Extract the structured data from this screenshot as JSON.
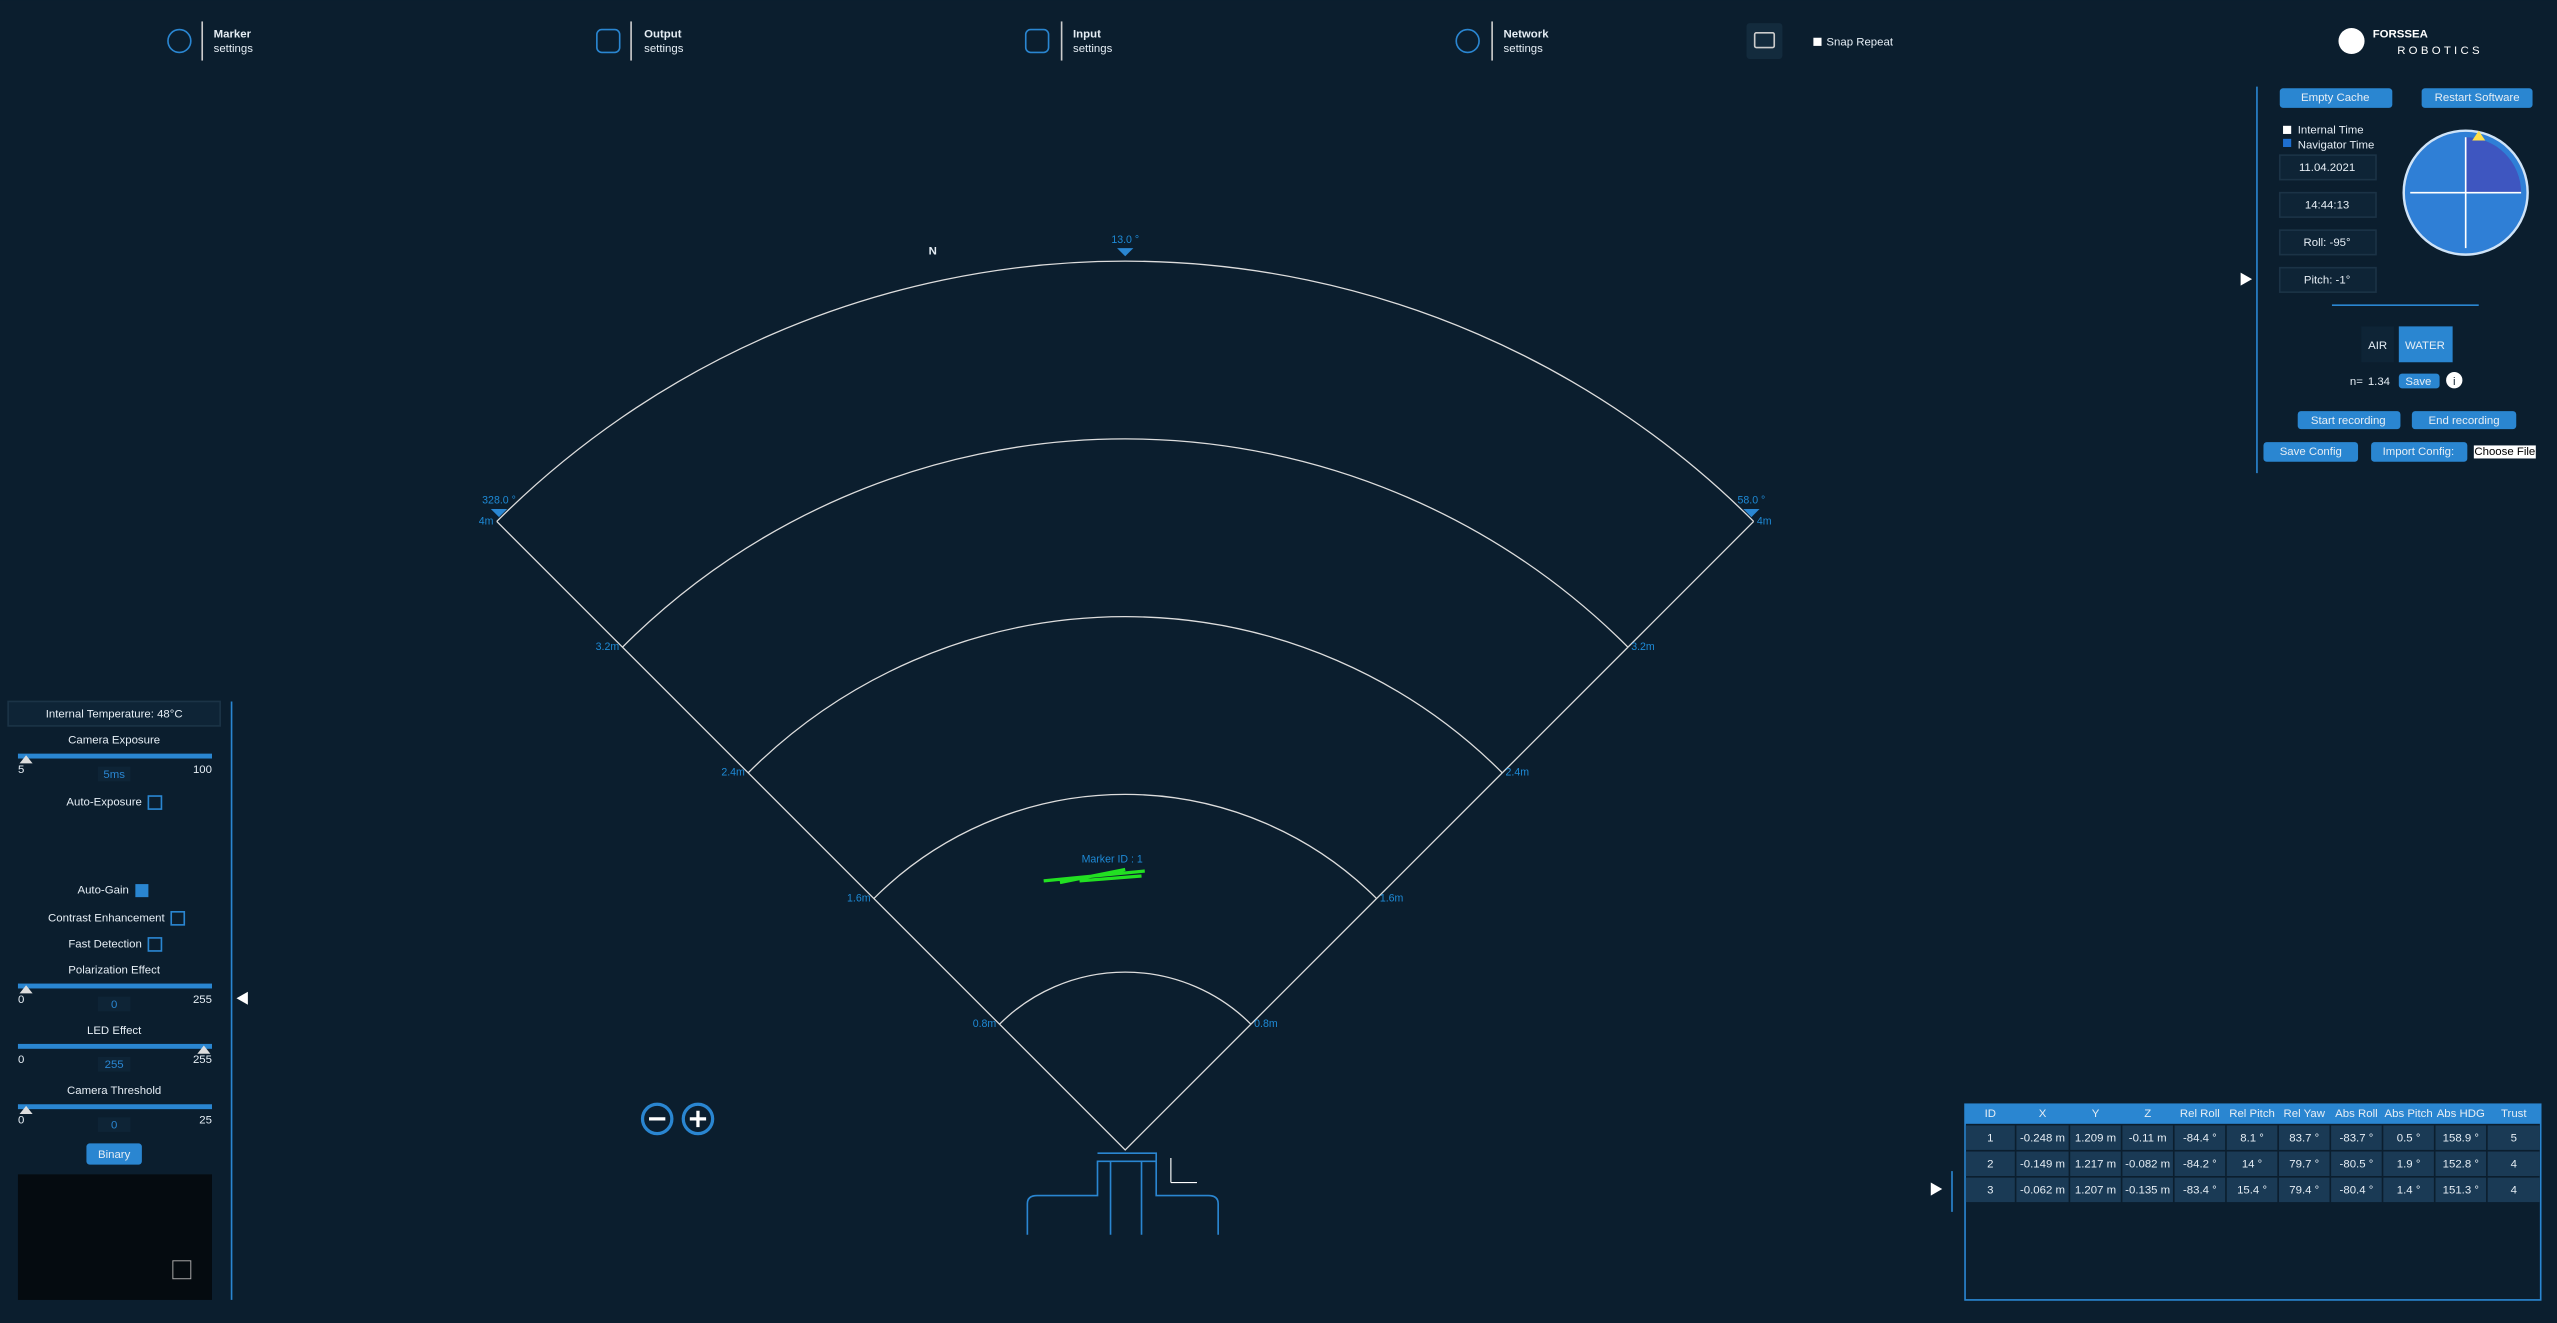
{
  "nav": [
    {
      "title": "Marker",
      "subtitle": "settings"
    },
    {
      "title": "Output",
      "subtitle": "settings"
    },
    {
      "title": "Input",
      "subtitle": "settings"
    },
    {
      "title": "Network",
      "subtitle": "settings"
    }
  ],
  "snap_repeat": "Snap Repeat",
  "logo": {
    "name": "FORSSEA",
    "tagline": "ROBOTICS"
  },
  "right_panel": {
    "buttons": [
      "Empty Cache",
      "Restart Software"
    ],
    "time_options": [
      "Internal Time",
      "Navigator Time"
    ],
    "date": "11.04.2021",
    "time": "14:44:13",
    "roll": "Roll: -95°",
    "pitch": "Pitch: -1°",
    "media": [
      "AIR",
      "WATER"
    ],
    "n_label": "n=",
    "n_value": "1.34",
    "save": "Save",
    "info": "i",
    "recording": [
      "Start recording",
      "End recording"
    ],
    "config": [
      "Save Config",
      "Import Config:",
      "Choose File"
    ]
  },
  "sonar": {
    "north": "N",
    "headings": [
      "328.0 °",
      "13.0 °",
      "58.0 °"
    ],
    "ranges": [
      "4m",
      "3.2m",
      "2.4m",
      "1.6m",
      "0.8m"
    ],
    "marker": "Marker ID : 1"
  },
  "left_panel": {
    "temperature": "Internal Temperature: 48°C",
    "sliders": [
      {
        "label": "Camera Exposure",
        "min": "5",
        "max": "100",
        "value": "5ms"
      },
      {
        "label": "Polarization Effect",
        "min": "0",
        "max": "255",
        "value": "0"
      },
      {
        "label": "LED Effect",
        "min": "0",
        "max": "255",
        "value": "255"
      },
      {
        "label": "Camera Threshold",
        "min": "0",
        "max": "25",
        "value": "0"
      }
    ],
    "checkboxes": [
      "Auto-Exposure",
      "Auto-Gain",
      "Contrast Enhancement",
      "Fast Detection"
    ],
    "binary": "Binary"
  },
  "table": {
    "headers": [
      "ID",
      "X",
      "Y",
      "Z",
      "Rel Roll",
      "Rel Pitch",
      "Rel Yaw",
      "Abs Roll",
      "Abs Pitch",
      "Abs HDG",
      "Trust"
    ],
    "rows": [
      [
        "1",
        "-0.248 m",
        "1.209 m",
        "-0.11 m",
        "-84.4 °",
        "8.1 °",
        "83.7 °",
        "-83.7 °",
        "0.5 °",
        "158.9 °",
        "5"
      ],
      [
        "2",
        "-0.149 m",
        "1.217 m",
        "-0.082 m",
        "-84.2 °",
        "14 °",
        "79.7 °",
        "-80.5 °",
        "1.9 °",
        "152.8 °",
        "4"
      ],
      [
        "3",
        "-0.062 m",
        "1.207 m",
        "-0.135 m",
        "-83.4 °",
        "15.4 °",
        "79.4 °",
        "-80.4 °",
        "1.4 °",
        "151.3 °",
        "4"
      ]
    ]
  }
}
